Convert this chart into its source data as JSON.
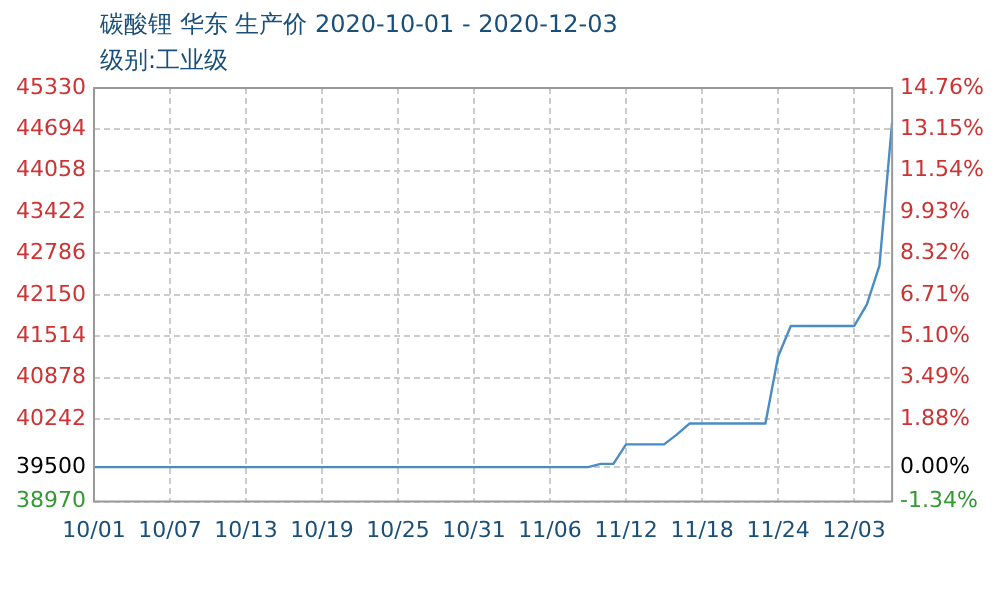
{
  "chart_data": {
    "type": "line",
    "title": "碳酸锂 华东 生产价 2020-10-01 - 2020-12-03",
    "subtitle": "级别:工业级",
    "categories": [
      "10/01",
      null,
      null,
      null,
      null,
      null,
      "10/07",
      null,
      null,
      null,
      null,
      null,
      "10/13",
      null,
      null,
      null,
      null,
      null,
      "10/19",
      null,
      null,
      null,
      null,
      null,
      "10/25",
      null,
      null,
      null,
      null,
      null,
      "10/31",
      null,
      null,
      null,
      null,
      null,
      "11/06",
      null,
      null,
      null,
      null,
      null,
      "11/12",
      null,
      null,
      null,
      null,
      null,
      "11/18",
      null,
      null,
      null,
      null,
      null,
      "11/24",
      null,
      null,
      null,
      null,
      null,
      "12/03",
      null,
      null,
      null
    ],
    "series": [
      {
        "color": "#4a8cc4",
        "values": [
          39500,
          39500,
          39500,
          39500,
          39500,
          39500,
          39500,
          39500,
          39500,
          39500,
          39500,
          39500,
          39500,
          39500,
          39500,
          39500,
          39500,
          39500,
          39500,
          39500,
          39500,
          39500,
          39500,
          39500,
          39500,
          39500,
          39500,
          39500,
          39500,
          39500,
          39500,
          39500,
          39500,
          39500,
          39500,
          39500,
          39500,
          39500,
          39500,
          39500,
          39550,
          39550,
          39850,
          39850,
          39850,
          39850,
          40000,
          40170,
          40170,
          40170,
          40170,
          40170,
          40170,
          40170,
          41200,
          41670,
          41670,
          41670,
          41670,
          41670,
          41670,
          42000,
          42600,
          44800
        ]
      }
    ],
    "ylim": [
      38970,
      45330
    ],
    "yticks": [
      38970,
      39500,
      40242,
      40878,
      41514,
      42150,
      42786,
      43422,
      44058,
      44694,
      45330
    ],
    "y2lim": [
      -1.34,
      14.76
    ],
    "y2ticks": [
      {
        "value": -1.34,
        "label": "-1.34%"
      },
      {
        "value": 0,
        "label": "0.00%"
      },
      {
        "value": 1.88,
        "label": "1.88%"
      },
      {
        "value": 3.49,
        "label": "3.49%"
      },
      {
        "value": 5.1,
        "label": "5.10%"
      },
      {
        "value": 6.71,
        "label": "6.71%"
      },
      {
        "value": 8.32,
        "label": "8.32%"
      },
      {
        "value": 9.93,
        "label": "9.93%"
      },
      {
        "value": 11.54,
        "label": "11.54%"
      },
      {
        "value": 13.15,
        "label": "13.15%"
      },
      {
        "value": 14.76,
        "label": "14.76%"
      }
    ],
    "grid": true,
    "legend": false,
    "marker": "none",
    "line_style": "solid"
  }
}
